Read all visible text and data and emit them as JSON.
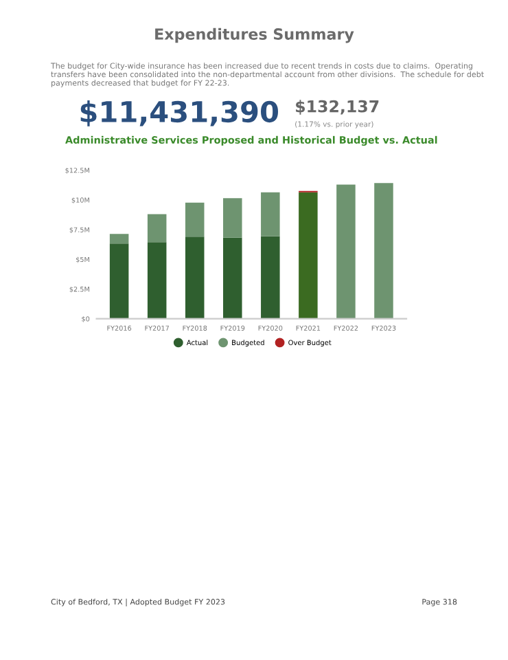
{
  "chart_data": {
    "type": "bar",
    "stacked": true,
    "title": "Administrative Services Proposed and Historical Budget vs. Actual",
    "annotations": [
      "Expenditures Summary",
      "The budget for City-wide insurance has been increased due to recent trends in costs due to claims.  Operating transfers have been consolidated into the non-departmental account from other divisions.  The schedule for debt payments decreased that budget for FY 22-23.",
      "$11,431,390",
      "$132,137",
      "(1.17% vs. prior year)",
      "City of Bedford, TX | Adopted Budget FY 2023",
      "Page 318"
    ],
    "categories": [
      "FY2016",
      "FY2017",
      "FY2018",
      "FY2019",
      "FY2020",
      "FY2021",
      "FY2022",
      "FY2023"
    ],
    "series": [
      {
        "name": "Actual",
        "color": "#2f5f2f",
        "colors": [
          "#2f5f2f",
          "#2f5f2f",
          "#2f5f2f",
          "#2f5f2f",
          "#2f5f2f",
          "#3b6b21",
          "#2f5f2f",
          "#2f5f2f"
        ],
        "values": [
          6.33,
          6.45,
          6.91,
          6.83,
          6.94,
          10.65,
          null,
          null
        ]
      },
      {
        "name": "Budgeted",
        "color": "#6e9470",
        "values": [
          0.81,
          2.35,
          2.86,
          3.32,
          3.71,
          null,
          11.3,
          11.43
        ]
      },
      {
        "name": "Over Budget",
        "color": "#b22222",
        "values": [
          null,
          null,
          null,
          null,
          null,
          0.11,
          null,
          null
        ]
      }
    ],
    "ylim": [
      0,
      12.5
    ],
    "yticks": [
      {
        "value": 0,
        "label": "$0"
      },
      {
        "value": 2.5,
        "label": "$2.5M"
      },
      {
        "value": 5,
        "label": "$5M"
      },
      {
        "value": 7.5,
        "label": "$7.5M"
      },
      {
        "value": 10,
        "label": "$10M"
      },
      {
        "value": 12.5,
        "label": "$12.5M"
      }
    ],
    "legend": "bottom",
    "grid": false
  }
}
